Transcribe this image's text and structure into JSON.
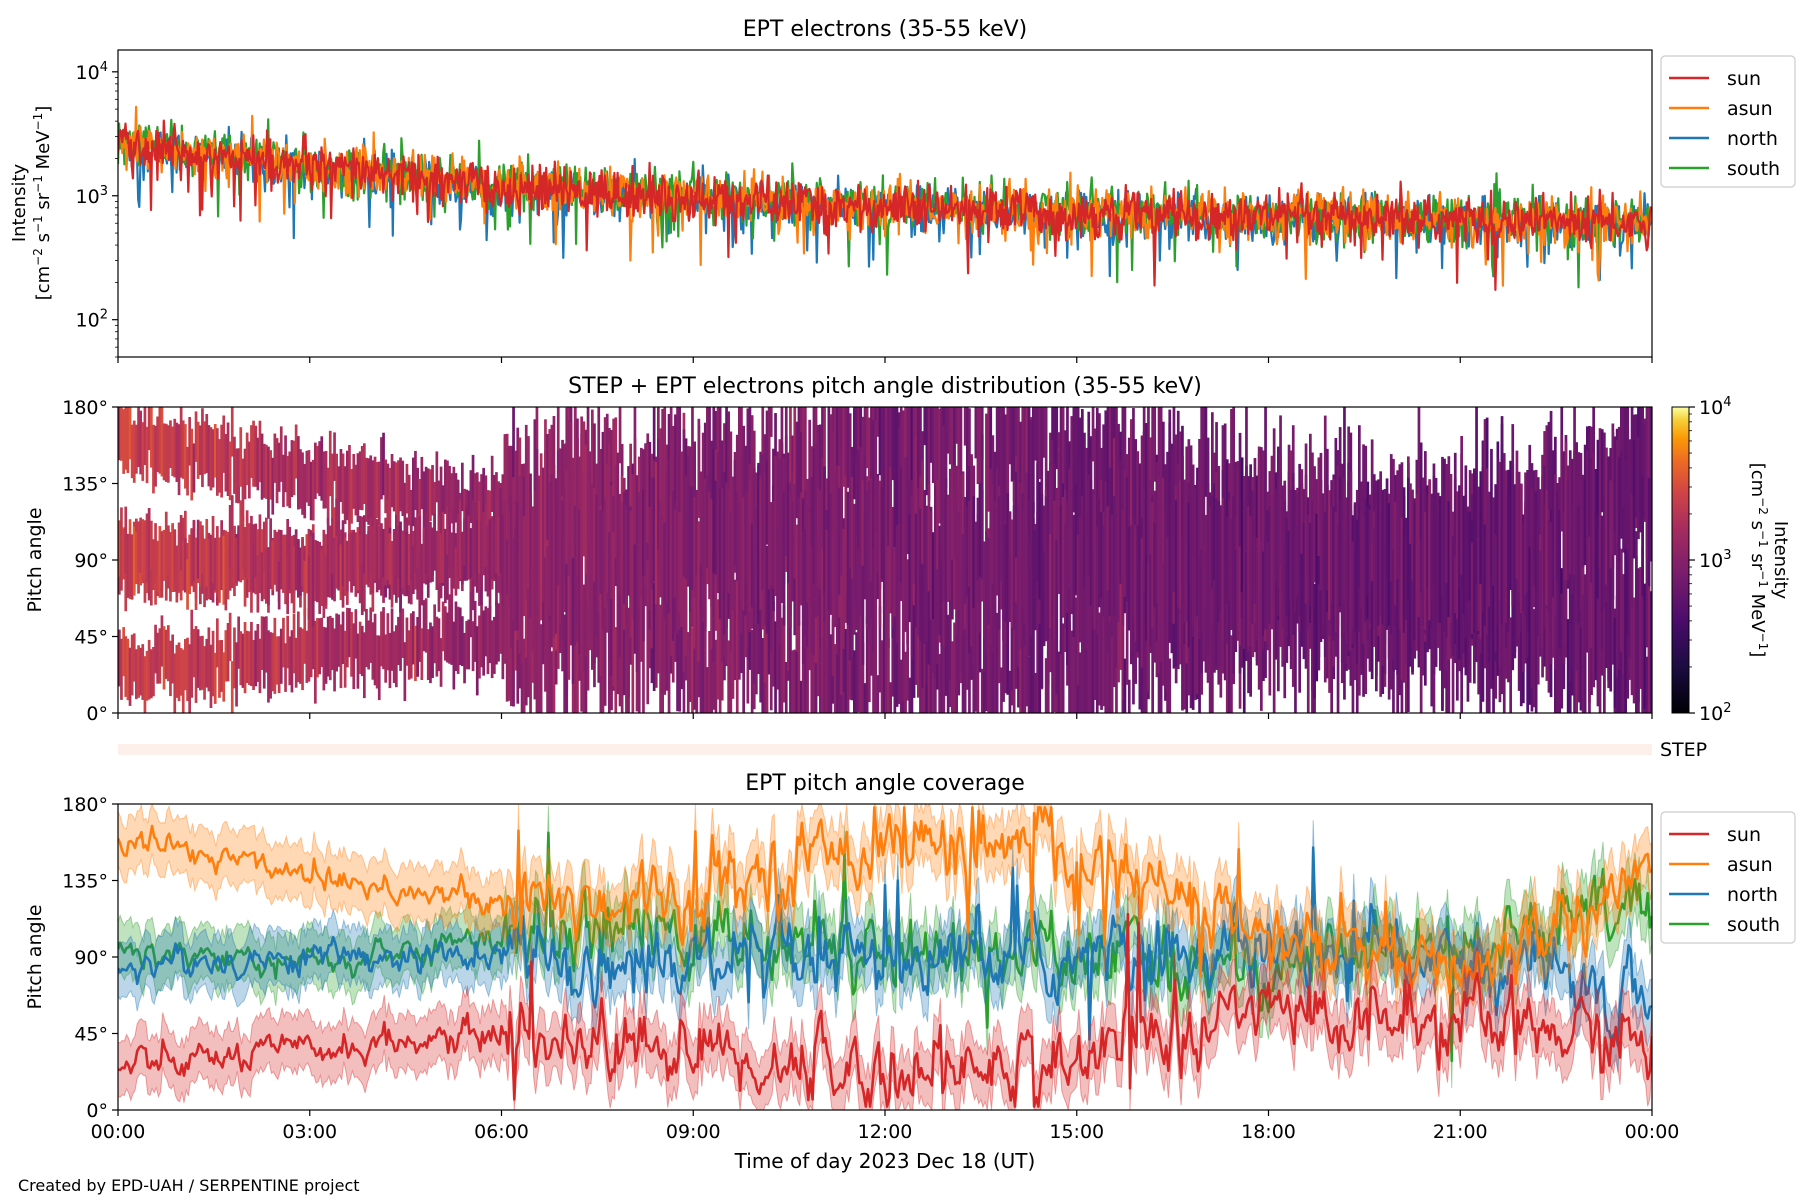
{
  "footer": {
    "credit": "Created by EPD-UAH / SERPENTINE project"
  },
  "colors": {
    "sun": "#d62728",
    "asun": "#ff7f0e",
    "north": "#1f77b4",
    "south": "#2ca02c"
  },
  "chart_data": [
    {
      "type": "line",
      "title": "EPT electrons (35-55 keV)",
      "ylabel": "Intensity",
      "ylabel_units": "[cm⁻² s⁻¹ sr⁻¹ MeV⁻¹]",
      "yscale": "log",
      "ylim": [
        50,
        15000
      ],
      "yticks": [
        {
          "value": 100,
          "label": "10²"
        },
        {
          "value": 1000,
          "label": "10³"
        },
        {
          "value": 10000,
          "label": "10⁴"
        }
      ],
      "xlim_hours": [
        0,
        24
      ],
      "legend": "right",
      "legend_entries": [
        "sun",
        "asun",
        "north",
        "south"
      ],
      "series_summary": [
        {
          "name": "sun",
          "x_hours": [
            0,
            3,
            6,
            9,
            12,
            15,
            18,
            21,
            24
          ],
          "values": [
            2600,
            1700,
            1150,
            950,
            800,
            720,
            680,
            640,
            600
          ],
          "color": "#d62728"
        },
        {
          "name": "asun",
          "x_hours": [
            0,
            3,
            6,
            9,
            12,
            15,
            18,
            21,
            24
          ],
          "values": [
            2600,
            1750,
            1200,
            980,
            820,
            740,
            690,
            650,
            620
          ],
          "color": "#ff7f0e"
        },
        {
          "name": "north",
          "x_hours": [
            0,
            3,
            6,
            9,
            12,
            15,
            18,
            21,
            24
          ],
          "values": [
            2500,
            1650,
            1100,
            900,
            780,
            700,
            660,
            620,
            590
          ],
          "color": "#1f77b4"
        },
        {
          "name": "south",
          "x_hours": [
            0,
            3,
            6,
            9,
            12,
            15,
            18,
            21,
            24
          ],
          "values": [
            2650,
            1800,
            1250,
            1000,
            840,
            760,
            700,
            660,
            630
          ],
          "color": "#2ca02c"
        }
      ]
    },
    {
      "type": "heatmap",
      "title": "STEP + EPT electrons pitch angle distribution (35-55 keV)",
      "ylabel": "Pitch angle",
      "ylim": [
        0,
        180
      ],
      "yticks": [
        "0°",
        "45°",
        "90°",
        "135°",
        "180°"
      ],
      "xlim_hours": [
        0,
        24
      ],
      "colorbar": {
        "label": "Intensity",
        "units": "[cm⁻² s⁻¹ sr⁻¹ MeV⁻¹]",
        "scale": "log",
        "range": [
          100,
          10000
        ],
        "ticks": [
          "10²",
          "10³",
          "10⁴"
        ],
        "colormap": "inferno"
      }
    },
    {
      "type": "bar",
      "label": "STEP"
    },
    {
      "type": "line",
      "title": "EPT pitch angle coverage",
      "ylabel": "Pitch angle",
      "ylim": [
        0,
        180
      ],
      "yticks": [
        "0°",
        "45°",
        "90°",
        "135°",
        "180°"
      ],
      "xlabel": "Time of day 2023 Dec 18 (UT)",
      "xticks": [
        "00:00",
        "03:00",
        "06:00",
        "09:00",
        "12:00",
        "15:00",
        "18:00",
        "21:00",
        "00:00"
      ],
      "xlim_hours": [
        0,
        24
      ],
      "legend": "right",
      "legend_entries": [
        "sun",
        "asun",
        "north",
        "south"
      ],
      "series_summary": [
        {
          "name": "sun",
          "x_hours": [
            0,
            3,
            6,
            9,
            12,
            15,
            18,
            21,
            24
          ],
          "values": [
            25,
            35,
            45,
            35,
            20,
            30,
            60,
            50,
            40
          ]
        },
        {
          "name": "asun",
          "x_hours": [
            0,
            3,
            6,
            9,
            12,
            15,
            18,
            21,
            24
          ],
          "values": [
            160,
            140,
            120,
            130,
            160,
            150,
            100,
            80,
            140
          ]
        },
        {
          "name": "north",
          "x_hours": [
            0,
            3,
            6,
            9,
            12,
            15,
            18,
            21,
            24
          ],
          "values": [
            85,
            90,
            90,
            85,
            85,
            90,
            95,
            90,
            60
          ]
        },
        {
          "name": "south",
          "x_hours": [
            0,
            3,
            6,
            9,
            12,
            15,
            18,
            21,
            24
          ],
          "values": [
            95,
            85,
            100,
            105,
            95,
            90,
            85,
            95,
            120
          ]
        }
      ]
    }
  ]
}
